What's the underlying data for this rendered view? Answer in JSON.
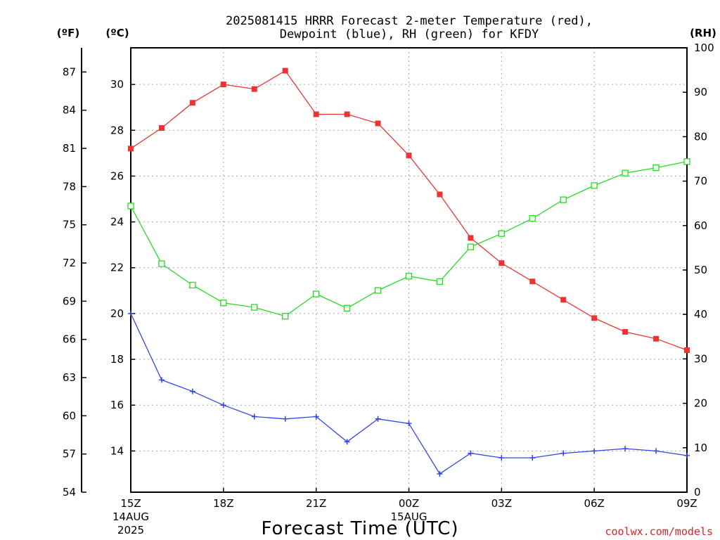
{
  "chart_data": {
    "type": "line",
    "title_line1": "2025081415 HRRR Forecast 2-meter Temperature (red),",
    "title_line2": "Dewpoint (blue), RH (green) for KFDY",
    "xlabel": "Forecast Time (UTC)",
    "watermark": "coolwx.com/models",
    "left_unit_f": "(ºF)",
    "left_unit_c": "(ºC)",
    "right_unit": "(RH)",
    "x_hours": [
      0,
      1,
      2,
      3,
      4,
      5,
      6,
      7,
      8,
      9,
      10,
      11,
      12,
      13,
      14,
      15,
      16,
      17,
      18
    ],
    "x_ticks": [
      {
        "hour": 0,
        "label": "15Z",
        "sub1": "14AUG",
        "sub2": "2025"
      },
      {
        "hour": 3,
        "label": "18Z",
        "sub1": "",
        "sub2": ""
      },
      {
        "hour": 6,
        "label": "21Z",
        "sub1": "",
        "sub2": ""
      },
      {
        "hour": 9,
        "label": "00Z",
        "sub1": "15AUG",
        "sub2": ""
      },
      {
        "hour": 12,
        "label": "03Z",
        "sub1": "",
        "sub2": ""
      },
      {
        "hour": 15,
        "label": "06Z",
        "sub1": "",
        "sub2": ""
      },
      {
        "hour": 18,
        "label": "09Z",
        "sub1": "",
        "sub2": ""
      }
    ],
    "ylim_c": [
      12.2,
      31.6
    ],
    "ylim_f": [
      54,
      88.9
    ],
    "ylim_rh": [
      0,
      100
    ],
    "yticks_c": [
      14,
      16,
      18,
      20,
      22,
      24,
      26,
      28,
      30
    ],
    "yticks_f": [
      54,
      57,
      60,
      63,
      66,
      69,
      72,
      75,
      78,
      81,
      84,
      87
    ],
    "yticks_rh": [
      0,
      10,
      20,
      30,
      40,
      50,
      60,
      70,
      80,
      90,
      100
    ],
    "grid": true,
    "series": [
      {
        "name": "Temperature",
        "unit": "C",
        "color": "#ee3333",
        "marker": "filled-square",
        "values": [
          27.2,
          28.1,
          29.2,
          30.0,
          29.8,
          30.6,
          28.7,
          28.7,
          28.3,
          26.9,
          25.2,
          23.3,
          22.2,
          21.4,
          20.6,
          19.8,
          19.2,
          18.9,
          18.4
        ]
      },
      {
        "name": "Dewpoint",
        "unit": "C",
        "color": "#3344ee",
        "marker": "plus",
        "values": [
          20.0,
          17.1,
          16.6,
          16.0,
          15.5,
          15.4,
          15.5,
          14.4,
          15.4,
          15.2,
          13.0,
          13.9,
          13.7,
          13.7,
          13.9,
          14.0,
          14.1,
          14.0,
          13.8
        ]
      },
      {
        "name": "RH",
        "unit": "%",
        "color": "#22dd22",
        "marker": "open-square",
        "values": [
          64.4,
          51.4,
          46.6,
          42.6,
          41.6,
          39.6,
          44.6,
          41.4,
          45.4,
          48.6,
          47.4,
          55.2,
          58.2,
          61.6,
          65.8,
          69.0,
          71.8,
          73.0,
          74.4
        ]
      }
    ]
  }
}
